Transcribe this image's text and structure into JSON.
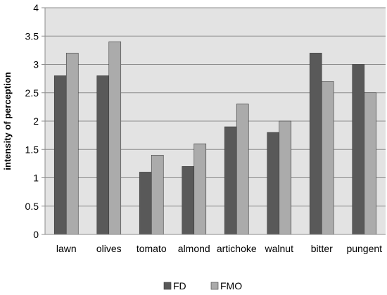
{
  "chart_data": {
    "type": "bar",
    "title": "",
    "xlabel": "",
    "ylabel": "intensity of perception",
    "ylim": [
      0,
      4
    ],
    "yticks": [
      "0",
      "0.5",
      "1",
      "1.5",
      "2",
      "2.5",
      "3",
      "3.5",
      "4"
    ],
    "grid": true,
    "legend": "bottom",
    "categories": [
      "lawn",
      "olives",
      "tomato",
      "almond",
      "artichoke",
      "walnut",
      "bitter",
      "pungent"
    ],
    "series": [
      {
        "name": "FD",
        "color": "#595959",
        "values": [
          2.8,
          2.8,
          1.1,
          1.2,
          1.9,
          1.8,
          3.2,
          3.0
        ]
      },
      {
        "name": "FMO",
        "color": "#ababab",
        "values": [
          3.2,
          3.4,
          1.4,
          1.6,
          2.3,
          2.0,
          2.7,
          2.5
        ]
      }
    ],
    "plot_background": "#e3e3e3"
  }
}
